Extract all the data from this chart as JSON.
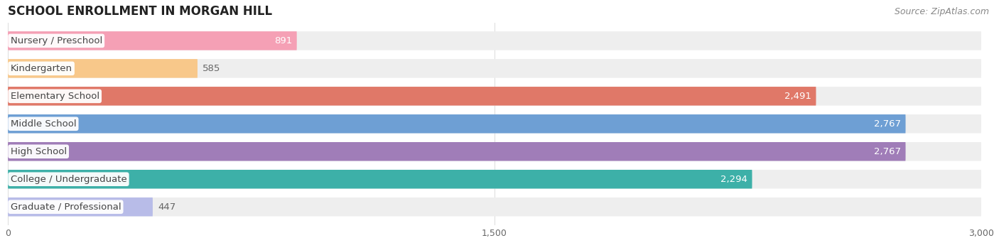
{
  "title": "SCHOOL ENROLLMENT IN MORGAN HILL",
  "source": "Source: ZipAtlas.com",
  "categories": [
    "Nursery / Preschool",
    "Kindergarten",
    "Elementary School",
    "Middle School",
    "High School",
    "College / Undergraduate",
    "Graduate / Professional"
  ],
  "values": [
    891,
    585,
    2491,
    2767,
    2767,
    2294,
    447
  ],
  "bar_colors": [
    "#f5a0b5",
    "#f8c88a",
    "#e07868",
    "#6e9fd4",
    "#a07db8",
    "#3db0a8",
    "#b8bce8"
  ],
  "bar_bg_color": "#eeeeee",
  "bar_bg_border": "#dddddd",
  "xlim": [
    0,
    3000
  ],
  "xticks": [
    0,
    1500,
    3000
  ],
  "value_inside_color": "#ffffff",
  "value_outside_color": "#666666",
  "label_color": "#444444",
  "title_color": "#222222",
  "source_color": "#888888",
  "grid_color": "#cccccc",
  "title_fontsize": 12,
  "source_fontsize": 9,
  "bar_label_fontsize": 9.5,
  "value_label_fontsize": 9.5,
  "tick_fontsize": 9,
  "figsize": [
    14.06,
    3.42
  ],
  "dpi": 100,
  "bar_height": 0.68,
  "value_inside_threshold": 800
}
